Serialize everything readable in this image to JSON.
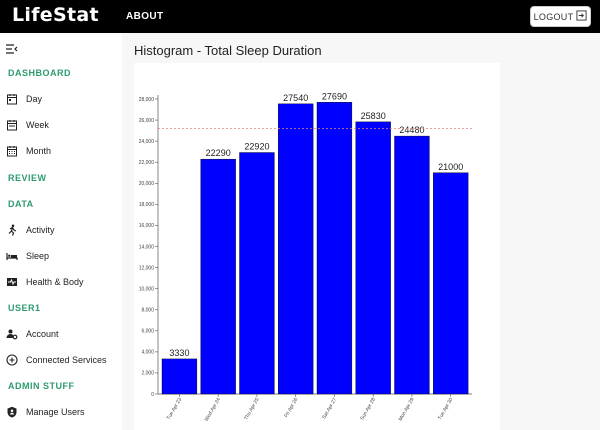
{
  "header": {
    "logo": "LifeStat",
    "nav_about": "ABOUT",
    "logout_label": "LOGOUT"
  },
  "sidebar": {
    "sections": [
      {
        "label": "DASHBOARD"
      },
      {
        "label": "REVIEW"
      },
      {
        "label": "DATA"
      },
      {
        "label": "USER1"
      },
      {
        "label": "ADMIN STUFF"
      }
    ],
    "items": [
      {
        "label": "Day",
        "icon": "calendar-day-icon"
      },
      {
        "label": "Week",
        "icon": "calendar-week-icon"
      },
      {
        "label": "Month",
        "icon": "calendar-month-icon"
      },
      {
        "label": "Activity",
        "icon": "running-icon"
      },
      {
        "label": "Sleep",
        "icon": "bed-icon"
      },
      {
        "label": "Health & Body",
        "icon": "health-icon"
      },
      {
        "label": "Account",
        "icon": "account-gear-icon"
      },
      {
        "label": "Connected Services",
        "icon": "plus-circle-icon"
      },
      {
        "label": "Manage Users",
        "icon": "shield-user-icon"
      }
    ]
  },
  "page": {
    "title": "Histogram - Total Sleep Duration"
  },
  "chart_data": {
    "type": "bar",
    "categories": [
      "Tue Apr 23",
      "Wed Apr 24",
      "Thu Apr 25",
      "Fri Apr 26",
      "Sat Apr 27",
      "Sun Apr 28",
      "Mon Apr 29",
      "Tue Apr 30"
    ],
    "values": [
      3330,
      22290,
      22920,
      27540,
      27690,
      25830,
      24480,
      21000
    ],
    "ylim": [
      0,
      28000
    ],
    "yticks": [
      0,
      2000,
      4000,
      6000,
      8000,
      10000,
      12000,
      14000,
      16000,
      18000,
      20000,
      22000,
      24000,
      26000,
      28000
    ],
    "reference_line": 25200,
    "bar_color": "#0000ff",
    "reference_line_color": "#e88080",
    "grid": false,
    "title": "",
    "xlabel": "",
    "ylabel": ""
  }
}
